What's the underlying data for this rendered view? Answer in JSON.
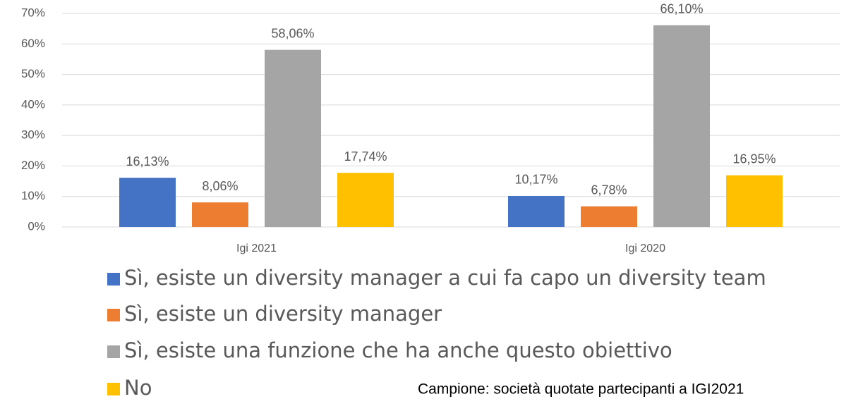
{
  "chart_data": {
    "type": "bar",
    "categories": [
      "Igi 2021",
      "Igi 2020"
    ],
    "series": [
      {
        "name": "Sì, esiste un diversity manager a cui fa capo un diversity team",
        "color": "#4472c4",
        "values": [
          16.13,
          10.17
        ],
        "value_labels": [
          "16,13%",
          "10,17%"
        ]
      },
      {
        "name": "Sì, esiste un diversity manager",
        "color": "#ed7d31",
        "values": [
          8.06,
          6.78
        ],
        "value_labels": [
          "8,06%",
          "6,78%"
        ]
      },
      {
        "name": "Sì, esiste una funzione che ha anche questo obiettivo",
        "color": "#a5a5a5",
        "values": [
          58.06,
          66.1
        ],
        "value_labels": [
          "58,06%",
          "66,10%"
        ]
      },
      {
        "name": "No",
        "color": "#ffc000",
        "values": [
          17.74,
          16.95
        ],
        "value_labels": [
          "17,74%",
          "16,95%"
        ]
      }
    ],
    "ylim": [
      0,
      70
    ],
    "yticks": [
      {
        "value": 0,
        "label": "0%"
      },
      {
        "value": 10,
        "label": "10%"
      },
      {
        "value": 20,
        "label": "20%"
      },
      {
        "value": 30,
        "label": "30%"
      },
      {
        "value": 40,
        "label": "40%"
      },
      {
        "value": 50,
        "label": "50%"
      },
      {
        "value": 60,
        "label": "60%"
      },
      {
        "value": 70,
        "label": "70%"
      }
    ],
    "grid": true,
    "legend": "bottom",
    "annotation": "Campione: società quotate partecipanti a IGI2021"
  }
}
